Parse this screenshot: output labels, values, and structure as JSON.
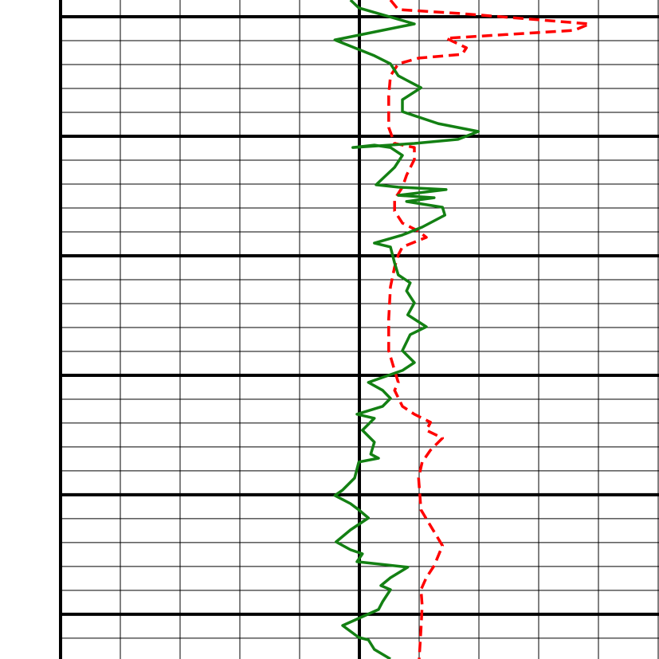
{
  "chart_data": {
    "type": "line",
    "orientation": "vertical-depth",
    "xlim": [
      0,
      10
    ],
    "ylim": [
      -0.7,
      26.87
    ],
    "y_inverted": true,
    "xticks": [
      0,
      1,
      2,
      3,
      4,
      5,
      6,
      7,
      8,
      9,
      10
    ],
    "yticks": [
      0,
      1,
      2,
      3,
      4,
      5,
      6,
      7,
      8,
      9,
      10,
      11,
      12,
      13,
      14,
      15,
      16,
      17,
      18,
      19,
      20,
      21,
      22,
      23,
      24,
      25,
      26
    ],
    "xticks_major": [
      0,
      5
    ],
    "yticks_major": [
      0,
      5,
      10,
      15,
      20,
      25
    ],
    "grid": true,
    "series": [
      {
        "color": "#138013",
        "dashed": false,
        "depth": [
          -0.7,
          -0.37,
          0.3,
          0.97,
          1.63,
          1.97,
          2.47,
          2.97,
          3.47,
          3.97,
          4.47,
          4.8,
          5.13,
          5.3,
          5.47,
          5.37,
          5.47,
          5.8,
          6.3,
          7.03,
          7.13,
          7.23,
          7.47,
          7.57,
          7.73,
          7.97,
          8.3,
          8.8,
          9.13,
          9.47,
          9.63,
          10.3,
          10.8,
          11.13,
          11.47,
          11.97,
          12.47,
          12.97,
          13.3,
          13.97,
          14.47,
          14.8,
          15.3,
          15.63,
          15.97,
          16.3,
          16.63,
          16.8,
          17.3,
          17.8,
          18.3,
          18.47,
          18.63,
          19.3,
          19.8,
          20.03,
          20.37,
          20.63,
          20.97,
          21.47,
          21.97,
          22.3,
          22.47,
          22.8,
          23.03,
          23.47,
          23.8,
          23.97,
          24.47,
          24.8,
          25.47,
          25.97,
          26.07,
          26.47,
          26.87
        ],
        "values": [
          4.85,
          4.99,
          5.92,
          4.59,
          5.25,
          5.52,
          5.65,
          6.03,
          5.72,
          5.72,
          6.32,
          6.99,
          6.65,
          5.92,
          4.89,
          5.25,
          5.52,
          5.72,
          5.59,
          5.28,
          5.65,
          6.45,
          5.65,
          6.25,
          5.79,
          6.39,
          6.43,
          6.05,
          5.72,
          5.25,
          5.52,
          5.59,
          5.65,
          5.85,
          5.79,
          5.92,
          5.81,
          6.12,
          5.85,
          5.72,
          5.92,
          5.72,
          5.15,
          5.39,
          5.52,
          5.39,
          4.96,
          5.25,
          5.05,
          5.25,
          5.19,
          5.32,
          4.99,
          4.92,
          4.72,
          4.59,
          4.85,
          4.99,
          5.15,
          4.85,
          4.61,
          4.85,
          5.05,
          4.96,
          5.81,
          5.52,
          5.36,
          5.52,
          5.39,
          5.32,
          4.72,
          4.99,
          5.15,
          5.25,
          5.52
        ]
      },
      {
        "color": "#ff0000",
        "dashed": true,
        "depth": [
          -0.7,
          -0.3,
          -0.13,
          0.3,
          0.57,
          0.9,
          1.3,
          1.57,
          1.73,
          1.97,
          2.47,
          3.3,
          4.63,
          5.3,
          5.47,
          5.97,
          6.63,
          7.13,
          7.63,
          8.13,
          8.63,
          8.97,
          9.23,
          9.63,
          9.97,
          10.47,
          11.3,
          12.63,
          13.97,
          14.8,
          15.3,
          15.63,
          16.3,
          16.63,
          16.97,
          17.3,
          17.63,
          18.13,
          18.63,
          19.3,
          20.63,
          21.3,
          22.13,
          22.97,
          23.47,
          23.97,
          24.63,
          25.63,
          26.87
        ],
        "values": [
          5.52,
          5.65,
          6.72,
          8.85,
          8.59,
          6.45,
          6.79,
          6.72,
          5.99,
          5.65,
          5.52,
          5.49,
          5.49,
          5.59,
          5.92,
          5.92,
          5.79,
          5.72,
          5.59,
          5.59,
          5.72,
          5.99,
          6.12,
          5.72,
          5.65,
          5.59,
          5.52,
          5.49,
          5.49,
          5.59,
          5.65,
          5.59,
          5.72,
          5.92,
          6.19,
          6.12,
          6.39,
          6.19,
          6.05,
          5.99,
          6.03,
          6.19,
          6.39,
          6.25,
          6.12,
          6.03,
          6.05,
          6.03,
          6.0
        ]
      }
    ]
  }
}
